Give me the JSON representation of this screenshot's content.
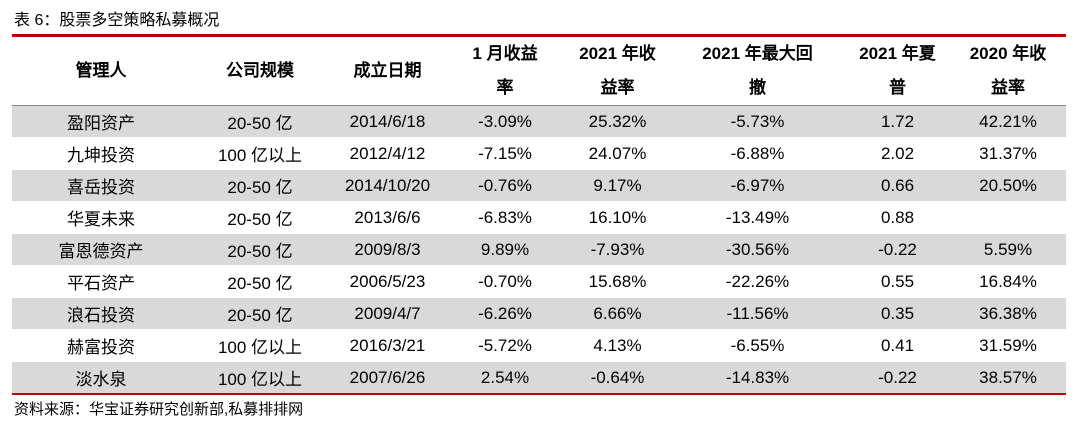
{
  "title": "表 6：股票多空策略私募概况",
  "table": {
    "header": [
      [
        "管理人"
      ],
      [
        "公司规模"
      ],
      [
        "成立日期"
      ],
      [
        "1 月收益",
        "率"
      ],
      [
        "2021 年收",
        "益率"
      ],
      [
        "2021 年最大回",
        "撤"
      ],
      [
        "2021 年夏",
        "普"
      ],
      [
        "2020 年收",
        "益率"
      ]
    ],
    "rows": [
      [
        "盈阳资产",
        "20-50 亿",
        "2014/6/18",
        "-3.09%",
        "25.32%",
        "-5.73%",
        "1.72",
        "42.21%"
      ],
      [
        "九坤投资",
        "100 亿以上",
        "2012/4/12",
        "-7.15%",
        "24.07%",
        "-6.88%",
        "2.02",
        "31.37%"
      ],
      [
        "喜岳投资",
        "20-50 亿",
        "2014/10/20",
        "-0.76%",
        "9.17%",
        "-6.97%",
        "0.66",
        "20.50%"
      ],
      [
        "华夏未来",
        "20-50 亿",
        "2013/6/6",
        "-6.83%",
        "16.10%",
        "-13.49%",
        "0.88",
        null
      ],
      [
        "富恩德资产",
        "20-50 亿",
        "2009/8/3",
        "9.89%",
        "-7.93%",
        "-30.56%",
        "-0.22",
        "5.59%"
      ],
      [
        "平石资产",
        "20-50 亿",
        "2006/5/23",
        "-0.70%",
        "15.68%",
        "-22.26%",
        "0.55",
        "16.84%"
      ],
      [
        "浪石投资",
        "20-50 亿",
        "2009/4/7",
        "-6.26%",
        "6.66%",
        "-11.56%",
        "0.35",
        "36.38%"
      ],
      [
        "赫富投资",
        "100 亿以上",
        "2016/3/21",
        "-5.72%",
        "4.13%",
        "-6.55%",
        "0.41",
        "31.59%"
      ],
      [
        "淡水泉",
        "100 亿以上",
        "2007/6/26",
        "2.54%",
        "-0.64%",
        "-14.83%",
        "-0.22",
        "38.57%"
      ]
    ]
  },
  "source": "资料来源：华宝证券研究创新部,私募排排网"
}
